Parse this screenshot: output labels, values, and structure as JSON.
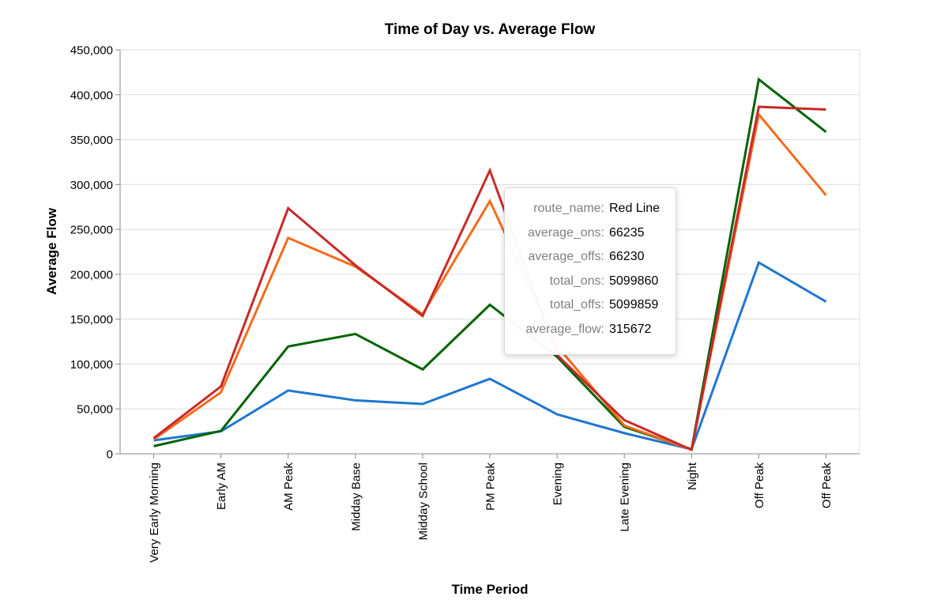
{
  "chart_data": {
    "type": "line",
    "title": "Time of Day vs. Average Flow",
    "xlabel": "Time Period",
    "ylabel": "Average Flow",
    "categories": [
      "Very Early Morning",
      "Early AM",
      "AM Peak",
      "Midday Base",
      "Midday School",
      "PM Peak",
      "Evening",
      "Late Evening",
      "Night",
      "Off Peak",
      "Off Peak"
    ],
    "ylim": [
      0,
      450000
    ],
    "yticks": [
      0,
      50000,
      100000,
      150000,
      200000,
      250000,
      300000,
      350000,
      400000,
      450000
    ],
    "ytick_labels": [
      "0",
      "50,000",
      "100,000",
      "150,000",
      "200,000",
      "250,000",
      "300,000",
      "350,000",
      "400,000",
      "450,000"
    ],
    "grid": true,
    "series": [
      {
        "color": "#1f77d0",
        "values": [
          15000,
          25000,
          70500,
          59500,
          55500,
          83500,
          44000,
          23000,
          5000,
          213000,
          169500
        ]
      },
      {
        "color": "#006400",
        "values": [
          8500,
          25500,
          119500,
          133500,
          94000,
          166000,
          108000,
          30000,
          5000,
          417000,
          358500
        ]
      },
      {
        "color": "#f56b1a",
        "values": [
          16000,
          68500,
          240500,
          208500,
          155500,
          281500,
          120000,
          31500,
          4500,
          378000,
          288000
        ]
      },
      {
        "color": "#c82a2a",
        "values": [
          17500,
          75000,
          273500,
          210000,
          153500,
          315672,
          110000,
          37500,
          4500,
          386500,
          383500
        ]
      }
    ]
  },
  "tooltip": {
    "rows": [
      {
        "key": "route_name:",
        "value": "Red Line"
      },
      {
        "key": "average_ons:",
        "value": "66235"
      },
      {
        "key": "average_offs:",
        "value": "66230"
      },
      {
        "key": "total_ons:",
        "value": "5099860"
      },
      {
        "key": "total_offs:",
        "value": "5099859"
      },
      {
        "key": "average_flow:",
        "value": "315672"
      }
    ]
  }
}
